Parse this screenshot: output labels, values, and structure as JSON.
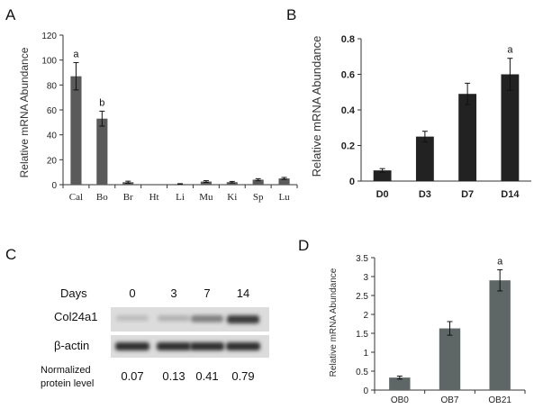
{
  "panels": {
    "A": {
      "label": "A"
    },
    "B": {
      "label": "B"
    },
    "C": {
      "label": "C"
    },
    "D": {
      "label": "D"
    }
  },
  "chart_data": [
    {
      "panel": "A",
      "type": "bar",
      "ylabel": "Relative mRNA Abundance",
      "xlabel": "",
      "categories": [
        "Cal",
        "Bo",
        "Br",
        "Ht",
        "Li",
        "Mu",
        "Ki",
        "Sp",
        "Lu"
      ],
      "values": [
        87,
        53,
        2,
        0,
        0.5,
        2.5,
        2,
        4,
        5
      ],
      "errors": [
        11,
        6,
        0.8,
        0,
        0.3,
        0.7,
        0.6,
        0.8,
        0.8
      ],
      "annotations": [
        "a",
        "b",
        "",
        "",
        "",
        "",
        "",
        "",
        ""
      ],
      "ylim": [
        0,
        120
      ],
      "yticks": [
        0,
        20,
        40,
        60,
        80,
        100,
        120
      ],
      "bar_color": "#5a5a5a"
    },
    {
      "panel": "B",
      "type": "bar",
      "ylabel": "Relative mRNA Abundance",
      "xlabel": "",
      "categories": [
        "D0",
        "D3",
        "D7",
        "D14"
      ],
      "values": [
        0.06,
        0.25,
        0.49,
        0.6
      ],
      "errors": [
        0.01,
        0.03,
        0.06,
        0.09
      ],
      "annotations": [
        "",
        "",
        "",
        "a"
      ],
      "ylim": [
        0,
        0.8
      ],
      "yticks": [
        "0",
        "0.2",
        "0.4",
        "0.6",
        "0.8"
      ],
      "bar_color": "#222222"
    },
    {
      "panel": "C",
      "type": "table",
      "row_header": "Days",
      "columns": [
        "0",
        "3",
        "7",
        "14"
      ],
      "bands": [
        "Col24a1",
        "β-actin"
      ],
      "band_intensity": [
        0.07,
        0.13,
        0.41,
        0.79
      ],
      "normalized_label_line1": "Normalized",
      "normalized_label_line2": "protein level",
      "normalized_values": [
        "0.07",
        "0.13",
        "0.41",
        "0.79"
      ]
    },
    {
      "panel": "D",
      "type": "bar",
      "ylabel": "Relative mRNA Abundance",
      "xlabel": "",
      "categories": [
        "OB0",
        "OB7",
        "OB21"
      ],
      "values": [
        0.33,
        1.63,
        2.9
      ],
      "errors": [
        0.04,
        0.18,
        0.28
      ],
      "annotations": [
        "",
        "",
        "a"
      ],
      "ylim": [
        0,
        3.5
      ],
      "yticks": [
        "0",
        "0.5",
        "1",
        "1.5",
        "2",
        "2.5",
        "3",
        "3.5"
      ],
      "bar_color": "#5e6666"
    }
  ]
}
